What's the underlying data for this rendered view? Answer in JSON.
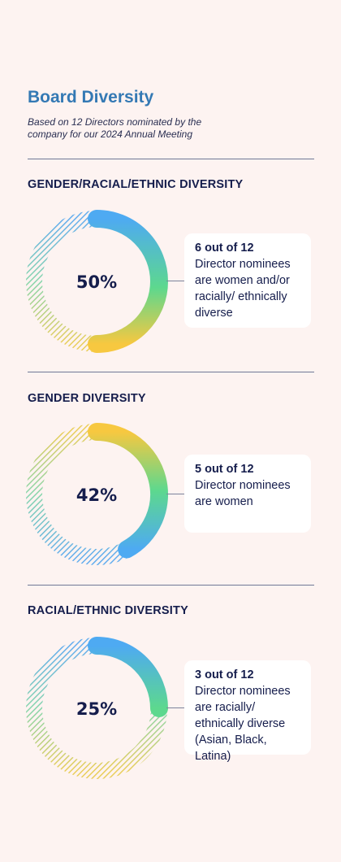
{
  "header": {
    "title": "Board Diversity",
    "subtitle": "Based on 12 Directors nominated by the company for our 2024 Annual Meeting"
  },
  "colors": {
    "background": "#fdf3f1",
    "title": "#3479b4",
    "text": "#151d4c",
    "gradient_blue": "#4eaaf2",
    "gradient_green": "#5dd88e",
    "gradient_yellow": "#f7c840"
  },
  "chart_data": [
    {
      "type": "pie",
      "title": "GENDER/RACIAL/ETHNIC DIVERSITY",
      "value_label": "50%",
      "values": [
        50,
        50
      ],
      "callout": {
        "count": "6 out of 12",
        "description": "Director nominees are women and/or racially/ ethnically diverse"
      }
    },
    {
      "type": "pie",
      "title": "GENDER DIVERSITY",
      "value_label": "42%",
      "values": [
        42,
        58
      ],
      "callout": {
        "count": "5 out of 12",
        "description": "Director nominees are women"
      }
    },
    {
      "type": "pie",
      "title": "RACIAL/ETHNIC DIVERSITY",
      "value_label": "25%",
      "values": [
        25,
        75
      ],
      "callout": {
        "count": "3 out of 12",
        "description": "Director nominees are racially/ ethnically diverse (Asian, Black, Latina)"
      }
    }
  ]
}
